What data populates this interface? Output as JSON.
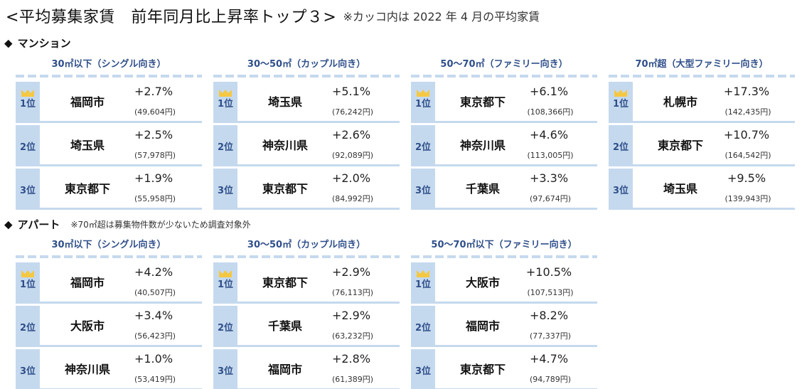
{
  "title": {
    "main": "<平均募集家賃　前年同月比上昇率トップ３>",
    "note": "※カッコ内は 2022 年 4 月の平均家賃"
  },
  "sections": {
    "mansion": {
      "label": "マンション",
      "tables": [
        {
          "category": "30㎡以下（シングル向き）",
          "rows": [
            {
              "rank": "1位",
              "city": "福岡市",
              "rate": "+2.7%",
              "rent": "(49,604円)"
            },
            {
              "rank": "2位",
              "city": "埼玉県",
              "rate": "+2.5%",
              "rent": "(57,978円)"
            },
            {
              "rank": "3位",
              "city": "東京都下",
              "rate": "+1.9%",
              "rent": "(55,958円)"
            }
          ]
        },
        {
          "category": "30〜50㎡（カップル向き）",
          "rows": [
            {
              "rank": "1位",
              "city": "埼玉県",
              "rate": "+5.1%",
              "rent": "(76,242円)"
            },
            {
              "rank": "2位",
              "city": "神奈川県",
              "rate": "+2.6%",
              "rent": "(92,089円)"
            },
            {
              "rank": "3位",
              "city": "東京都下",
              "rate": "+2.0%",
              "rent": "(84,992円)"
            }
          ]
        },
        {
          "category": "50〜70㎡（ファミリー向き）",
          "rows": [
            {
              "rank": "1位",
              "city": "東京都下",
              "rate": "+6.1%",
              "rent": "(108,366円)"
            },
            {
              "rank": "2位",
              "city": "神奈川県",
              "rate": "+4.6%",
              "rent": "(113,005円)"
            },
            {
              "rank": "3位",
              "city": "千葉県",
              "rate": "+3.3%",
              "rent": "(97,674円)"
            }
          ]
        },
        {
          "category": "70㎡超（大型ファミリー向き）",
          "rows": [
            {
              "rank": "1位",
              "city": "札幌市",
              "rate": "+17.3%",
              "rent": "(142,435円)"
            },
            {
              "rank": "2位",
              "city": "東京都下",
              "rate": "+10.7%",
              "rent": "(164,542円)"
            },
            {
              "rank": "3位",
              "city": "埼玉県",
              "rate": "+9.5%",
              "rent": "(139,943円)"
            }
          ]
        }
      ]
    },
    "apart": {
      "label": "アパート",
      "note": "※70㎡超は募集物件数が少ないため調査対象外",
      "tables": [
        {
          "category": "30㎡以下（シングル向き）",
          "rows": [
            {
              "rank": "1位",
              "city": "福岡市",
              "rate": "+4.2%",
              "rent": "(40,507円)"
            },
            {
              "rank": "2位",
              "city": "大阪市",
              "rate": "+3.4%",
              "rent": "(56,423円)"
            },
            {
              "rank": "3位",
              "city": "神奈川県",
              "rate": "+1.0%",
              "rent": "(53,419円)"
            }
          ]
        },
        {
          "category": "30〜50㎡（カップル向き）",
          "rows": [
            {
              "rank": "1位",
              "city": "東京都下",
              "rate": "+2.9%",
              "rent": "(76,113円)"
            },
            {
              "rank": "2位",
              "city": "千葉県",
              "rate": "+2.9%",
              "rent": "(63,232円)"
            },
            {
              "rank": "3位",
              "city": "福岡市",
              "rate": "+2.8%",
              "rent": "(61,389円)"
            }
          ]
        },
        {
          "category": "50〜70㎡以下（ファミリー向き）",
          "rows": [
            {
              "rank": "1位",
              "city": "大阪市",
              "rate": "+10.5%",
              "rent": "(107,513円)"
            },
            {
              "rank": "2位",
              "city": "福岡市",
              "rate": "+8.2%",
              "rent": "(77,337円)"
            },
            {
              "rank": "3位",
              "city": "東京都下",
              "rate": "+4.7%",
              "rent": "(94,789円)"
            }
          ]
        }
      ]
    }
  },
  "icons": {
    "section_marker": "◆",
    "first_place": "crown-icon"
  },
  "colors": {
    "accent_fill": "#c5d9ee",
    "rank_text": "#2f4f8a",
    "crown": "#f5c842"
  }
}
